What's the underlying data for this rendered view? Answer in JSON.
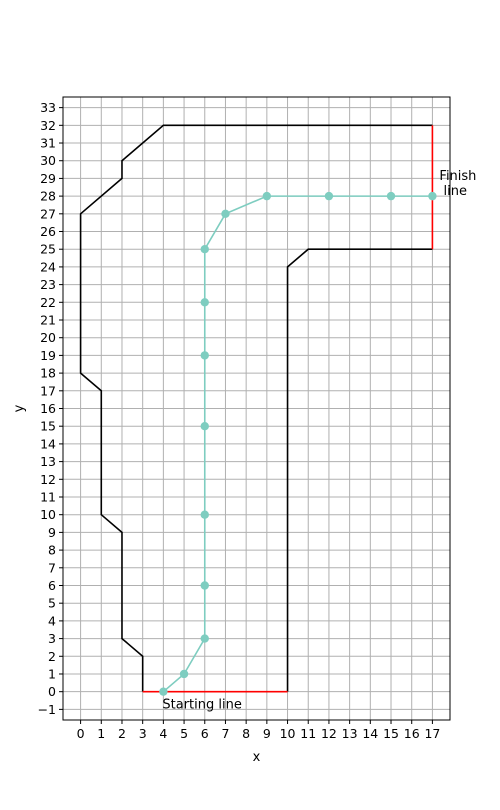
{
  "chart_data": {
    "type": "line",
    "xlabel": "x",
    "ylabel": "y",
    "xlim": [
      -0.85,
      17.85
    ],
    "ylim": [
      -1.6,
      33.6
    ],
    "x_ticks": [
      0,
      1,
      2,
      3,
      4,
      5,
      6,
      7,
      8,
      9,
      10,
      11,
      12,
      13,
      14,
      15,
      16,
      17
    ],
    "y_ticks": [
      -1,
      0,
      1,
      2,
      3,
      4,
      5,
      6,
      7,
      8,
      9,
      10,
      11,
      12,
      13,
      14,
      15,
      16,
      17,
      18,
      19,
      20,
      21,
      22,
      23,
      24,
      25,
      26,
      27,
      28,
      29,
      30,
      31,
      32,
      33
    ],
    "grid": true,
    "track": {
      "color": "#000000",
      "left_boundary": [
        [
          3,
          0
        ],
        [
          3,
          2
        ],
        [
          2,
          3
        ],
        [
          2,
          9
        ],
        [
          1,
          10
        ],
        [
          1,
          17
        ],
        [
          0,
          18
        ],
        [
          0,
          27
        ],
        [
          2,
          29
        ],
        [
          2,
          30
        ],
        [
          4,
          32
        ],
        [
          17,
          32
        ]
      ],
      "right_boundary": [
        [
          10,
          0
        ],
        [
          10,
          24
        ],
        [
          11,
          25
        ],
        [
          17,
          25
        ]
      ]
    },
    "start_line": {
      "color": "#ff0000",
      "points": [
        [
          3,
          0
        ],
        [
          10,
          0
        ]
      ]
    },
    "finish_line": {
      "color": "#ff0000",
      "points": [
        [
          17,
          25
        ],
        [
          17,
          32
        ]
      ]
    },
    "series": [
      {
        "color": "#7ecdc0",
        "x": [
          4,
          5,
          6,
          6,
          6,
          6,
          6,
          6,
          6,
          7,
          9,
          12,
          15,
          17
        ],
        "y": [
          0,
          1,
          3,
          6,
          10,
          15,
          19,
          22,
          25,
          27,
          28,
          28,
          28,
          28
        ]
      }
    ],
    "annotations": [
      {
        "text": "Starting line",
        "x": 4,
        "y": 0
      },
      {
        "text": "Finish",
        "x": 17,
        "y": 28
      },
      {
        "text": " line",
        "x": 17,
        "y": 28
      }
    ]
  }
}
